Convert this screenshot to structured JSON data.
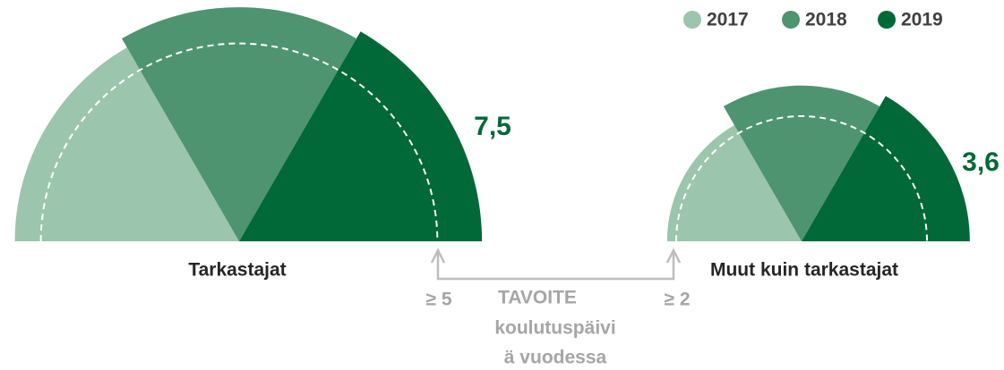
{
  "legend": {
    "items": [
      {
        "name": "2017",
        "color": "#9cc5ad"
      },
      {
        "name": "2018",
        "color": "#4e9470"
      },
      {
        "name": "2019",
        "color": "#006937"
      }
    ]
  },
  "chart_data": [
    {
      "type": "rose",
      "title": "Tarkastajat",
      "values": [
        6.4,
        7.0,
        7.5
      ],
      "value_labels": [
        null,
        null,
        "7,5"
      ],
      "target": {
        "value": 5,
        "label": "≥ 5"
      }
    },
    {
      "type": "rose",
      "title": "Muut kuin tarkastajat",
      "values": [
        2.3,
        3.1,
        3.6
      ],
      "value_labels": [
        null,
        null,
        "3,6"
      ],
      "target": {
        "value": 2,
        "label": "≥ 2"
      }
    }
  ],
  "annotation": {
    "title": "TAVOITE",
    "lines": [
      "koulutuspäivi",
      "ä vuodessa"
    ]
  }
}
